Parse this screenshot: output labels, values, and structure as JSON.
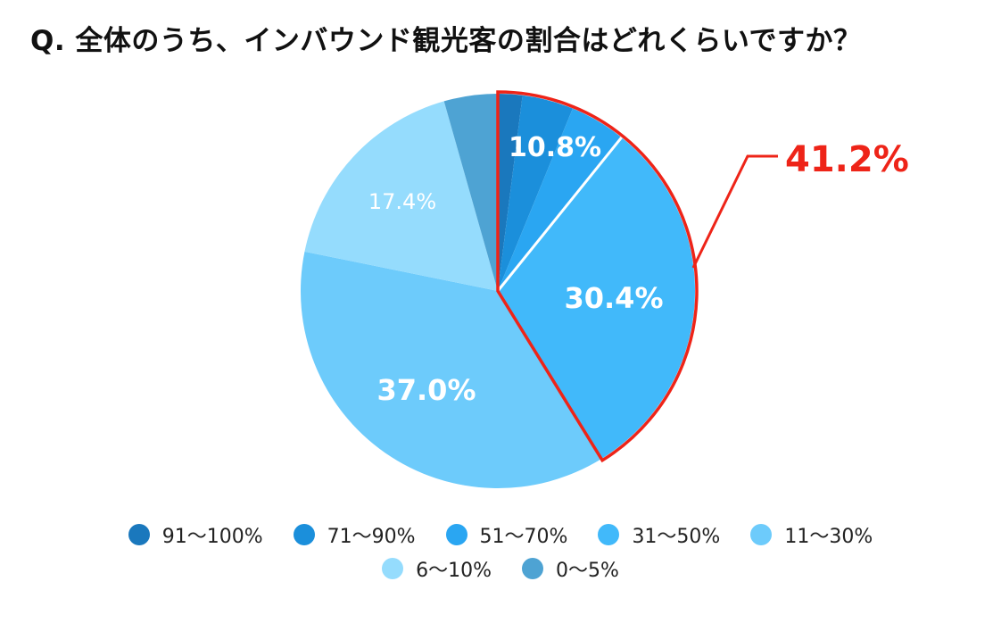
{
  "title": "Q. 全体のうち、インバウンド観光客の割合はどれくらいですか？",
  "chart_data": {
    "type": "pie",
    "slices": [
      {
        "label": "91〜100%",
        "value": 2.0,
        "color": "#1a78bd"
      },
      {
        "label": "71〜90%",
        "value": 4.2,
        "color": "#1b8fdb"
      },
      {
        "label": "51〜70%",
        "value": 4.6,
        "color": "#2aa6f2"
      },
      {
        "label": "31〜50%",
        "value": 30.4,
        "color": "#41b9fa"
      },
      {
        "label": "11〜30%",
        "value": 37.0,
        "color": "#6dcbfb"
      },
      {
        "label": "6〜10%",
        "value": 17.4,
        "color": "#95dcfd"
      },
      {
        "label": "0〜5%",
        "value": 4.4,
        "color": "#4ea3d3"
      }
    ],
    "data_labels": [
      {
        "text": "10.8%",
        "slices": [
          0,
          1,
          2
        ]
      },
      {
        "text": "30.4%",
        "slices": [
          3
        ]
      },
      {
        "text": "37.0%",
        "slices": [
          4
        ]
      },
      {
        "text": "17.4%",
        "slices": [
          5
        ]
      }
    ],
    "highlight": {
      "label": "41.2%",
      "slices": [
        0,
        1,
        2,
        3
      ],
      "color": "#ee2418"
    },
    "legend_position": "bottom"
  }
}
